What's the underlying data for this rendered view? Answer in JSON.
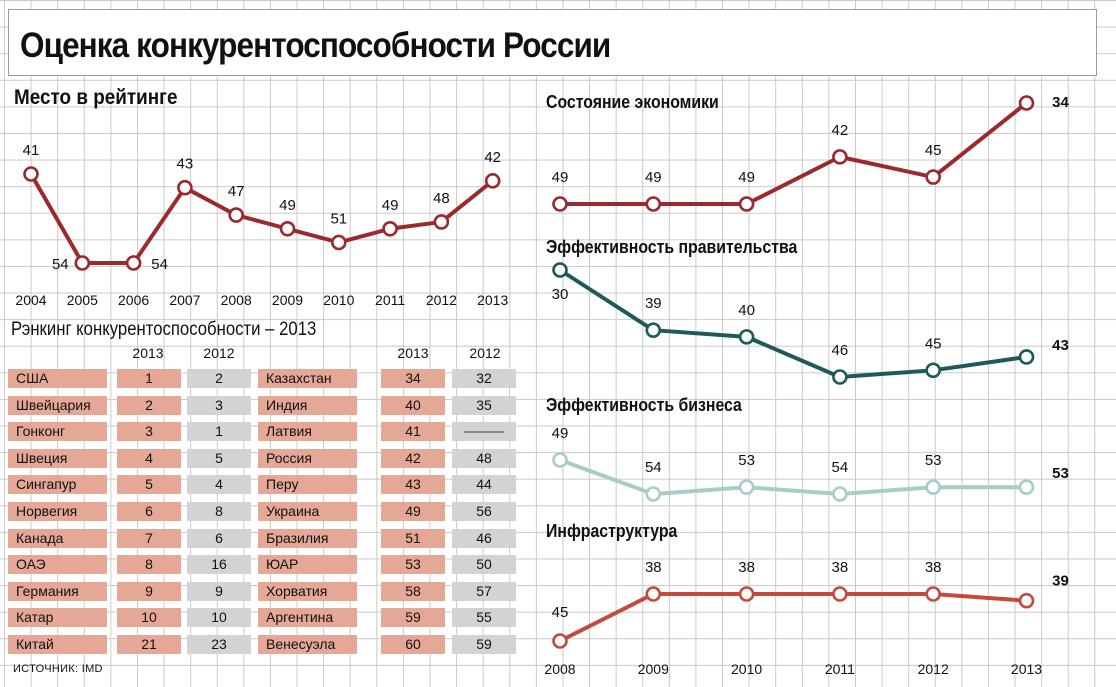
{
  "title": "Оценка конкурентоспособности России",
  "source": "ИСТОЧНИК: IMD",
  "colors": {
    "dark_red": "#9b2a2e",
    "dark_teal": "#1e5a58",
    "light_teal": "#a8ccc8",
    "red": "#c54a3e",
    "table_name_bg": "#e6a896",
    "table_2012_bg": "#d3d3d3",
    "grid": "#c9c9c9"
  },
  "chart_data": [
    {
      "type": "line",
      "title": "Место в рейтинге",
      "x": [
        "2004",
        "2005",
        "2006",
        "2007",
        "2008",
        "2009",
        "2010",
        "2011",
        "2012",
        "2013"
      ],
      "series": [
        {
          "name": "",
          "values": [
            41,
            54,
            54,
            43,
            47,
            49,
            51,
            49,
            48,
            42
          ]
        }
      ],
      "y_inverted": true,
      "color": "#9b2a2e"
    },
    {
      "type": "line",
      "title": "Состояние экономики",
      "x": [
        "2008",
        "2009",
        "2010",
        "2011",
        "2012",
        "2013"
      ],
      "series": [
        {
          "name": "",
          "values": [
            49,
            49,
            49,
            42,
            45,
            34
          ]
        }
      ],
      "y_inverted": true,
      "color": "#9b2a2e"
    },
    {
      "type": "line",
      "title": "Эффективность правительства",
      "x": [
        "2008",
        "2009",
        "2010",
        "2011",
        "2012",
        "2013"
      ],
      "series": [
        {
          "name": "",
          "values": [
            30,
            39,
            40,
            46,
            45,
            43
          ]
        }
      ],
      "y_inverted": true,
      "color": "#1e5a58"
    },
    {
      "type": "line",
      "title": "Эффективность бизнеса",
      "x": [
        "2008",
        "2009",
        "2010",
        "2011",
        "2012",
        "2013"
      ],
      "series": [
        {
          "name": "",
          "values": [
            49,
            54,
            53,
            54,
            53,
            53
          ]
        }
      ],
      "y_inverted": true,
      "color": "#a8ccc8"
    },
    {
      "type": "line",
      "title": "Инфраструктура",
      "x": [
        "2008",
        "2009",
        "2010",
        "2011",
        "2012",
        "2013"
      ],
      "series": [
        {
          "name": "",
          "values": [
            45,
            38,
            38,
            38,
            38,
            39
          ]
        }
      ],
      "y_inverted": true,
      "color": "#c54a3e"
    },
    {
      "type": "table",
      "title": "Рэнкинг конкурентоспособности – 2013",
      "columns": [
        "2013",
        "2012"
      ],
      "left": [
        {
          "country": "США",
          "r2013": "1",
          "r2012": "2"
        },
        {
          "country": "Швейцария",
          "r2013": "2",
          "r2012": "3"
        },
        {
          "country": "Гонконг",
          "r2013": "3",
          "r2012": "1"
        },
        {
          "country": "Швеция",
          "r2013": "4",
          "r2012": "5"
        },
        {
          "country": "Сингапур",
          "r2013": "5",
          "r2012": "4"
        },
        {
          "country": "Норвегия",
          "r2013": "6",
          "r2012": "8"
        },
        {
          "country": "Канада",
          "r2013": "7",
          "r2012": "6"
        },
        {
          "country": "ОАЭ",
          "r2013": "8",
          "r2012": "16"
        },
        {
          "country": "Германия",
          "r2013": "9",
          "r2012": "9"
        },
        {
          "country": "Катар",
          "r2013": "10",
          "r2012": "10"
        },
        {
          "country": "Китай",
          "r2013": "21",
          "r2012": "23"
        }
      ],
      "right": [
        {
          "country": "Казахстан",
          "r2013": "34",
          "r2012": "32"
        },
        {
          "country": "Индия",
          "r2013": "40",
          "r2012": "35"
        },
        {
          "country": "Латвия",
          "r2013": "41",
          "r2012": ""
        },
        {
          "country": "Россия",
          "r2013": "42",
          "r2012": "48"
        },
        {
          "country": "Перу",
          "r2013": "43",
          "r2012": "44"
        },
        {
          "country": "Украина",
          "r2013": "49",
          "r2012": "56"
        },
        {
          "country": "Бразилия",
          "r2013": "51",
          "r2012": "46"
        },
        {
          "country": "ЮАР",
          "r2013": "53",
          "r2012": "50"
        },
        {
          "country": "Хорватия",
          "r2013": "58",
          "r2012": "57"
        },
        {
          "country": "Аргентина",
          "r2013": "59",
          "r2012": "55"
        },
        {
          "country": "Венесуэла",
          "r2013": "60",
          "r2012": "59"
        }
      ]
    }
  ]
}
